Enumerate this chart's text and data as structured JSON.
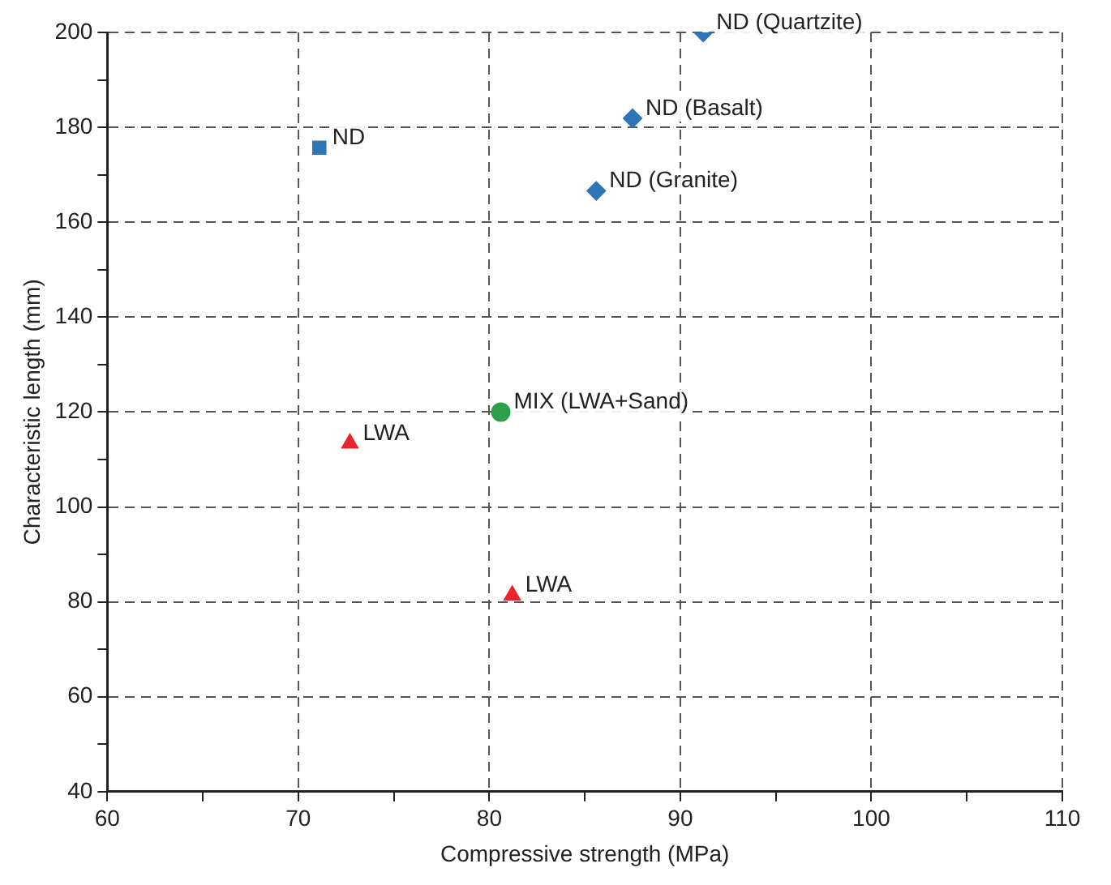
{
  "chart_data": {
    "type": "scatter",
    "xlabel": "Compressive strength (MPa)",
    "ylabel": "Characteristic length (mm)",
    "xlim": [
      60,
      110
    ],
    "ylim": [
      40,
      200
    ],
    "xticks": [
      60,
      {
        "value": 65,
        "label": null
      },
      70,
      {
        "value": 75,
        "label": null
      },
      80,
      {
        "value": 85,
        "label": null
      },
      90,
      {
        "value": 95,
        "label": null
      },
      100,
      {
        "value": 105,
        "label": null
      },
      110
    ],
    "yticks": [
      40,
      {
        "value": 50,
        "label": null
      },
      60,
      {
        "value": 70,
        "label": null
      },
      80,
      {
        "value": 90,
        "label": null
      },
      100,
      {
        "value": 110,
        "label": null
      },
      120,
      {
        "value": 130,
        "label": null
      },
      140,
      {
        "value": 150,
        "label": null
      },
      160,
      {
        "value": 170,
        "label": null
      },
      180,
      {
        "value": 190,
        "label": null
      },
      200
    ],
    "grid": true,
    "legend": false,
    "series": [
      {
        "color": "#2e75b6",
        "marker": "square",
        "x": [
          71.1
        ],
        "values": [
          175.7
        ]
      },
      {
        "color": "#2e75b6",
        "marker": "diamond",
        "x": [
          91.2,
          87.5,
          85.6
        ],
        "values": [
          200,
          181.9,
          166.6
        ]
      },
      {
        "color": "#e8262a",
        "marker": "triangle",
        "x": [
          72.7,
          81.2
        ],
        "values": [
          113.4,
          81.4
        ]
      },
      {
        "color": "#2ca04a",
        "marker": "circle",
        "x": [
          80.6
        ],
        "values": [
          120
        ]
      }
    ],
    "annotations": [
      {
        "text": "ND",
        "x": 71.1,
        "y": 175.7
      },
      {
        "text": "ND (Quartzite)",
        "x": 91.2,
        "y": 200
      },
      {
        "text": "ND (Basalt)",
        "x": 87.5,
        "y": 181.9
      },
      {
        "text": "ND (Granite)",
        "x": 85.6,
        "y": 166.6
      },
      {
        "text": "LWA",
        "x": 72.7,
        "y": 113.4
      },
      {
        "text": "LWA",
        "x": 81.2,
        "y": 81.4
      },
      {
        "text": "MIX (LWA+Sand)",
        "x": 80.6,
        "y": 120
      }
    ]
  }
}
